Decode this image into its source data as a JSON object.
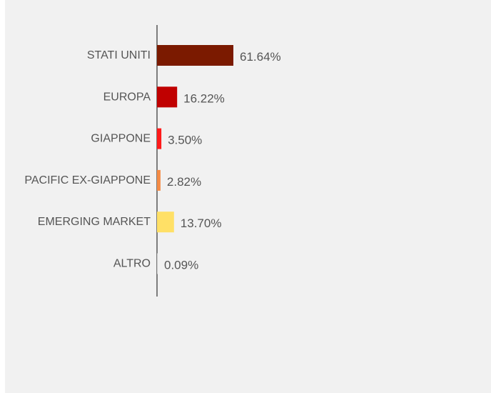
{
  "chart_data": {
    "type": "bar",
    "orientation": "horizontal",
    "title": "",
    "categories": [
      "STATI UNITI",
      "EUROPA",
      "GIAPPONE",
      "PACIFIC EX-GIAPPONE",
      "EMERGING MARKET",
      "ALTRO"
    ],
    "values": [
      61.64,
      16.22,
      3.5,
      2.82,
      13.7,
      0.09
    ],
    "value_labels": [
      "61.64%",
      "16.22%",
      "3.50%",
      "2.82%",
      "13.70%",
      "0.09%"
    ],
    "colors": [
      "#7b1a00",
      "#c00000",
      "#ff1a1a",
      "#f58b45",
      "#ffe066",
      "#cccccc"
    ],
    "xlim": [
      0,
      100
    ],
    "grid": false,
    "legend": "none"
  }
}
